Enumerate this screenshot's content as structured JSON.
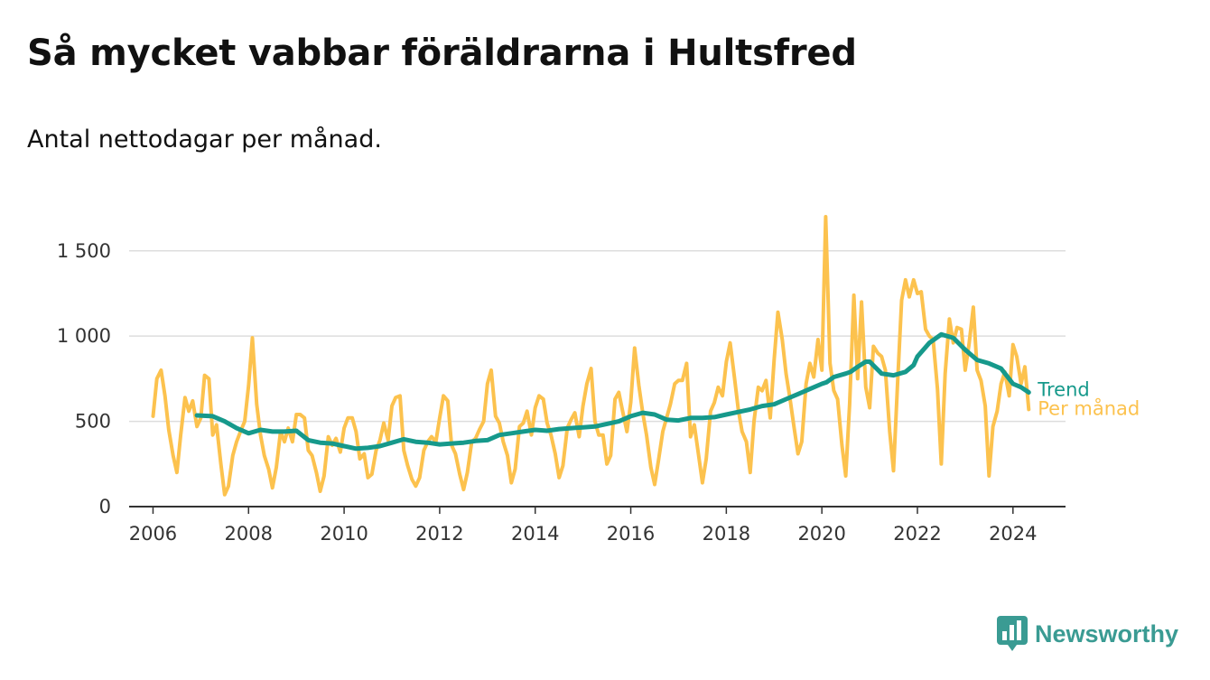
{
  "header": {
    "title": "Så mycket vabbar föräldrarna i Hultsfred",
    "subtitle": "Antal nettodagar per månad."
  },
  "brand": {
    "name": "Newsworthy",
    "icon": "newsworthy-logo-icon"
  },
  "colors": {
    "monthly": "#fcc24e",
    "trend": "#16998b",
    "grid": "#dddddd",
    "axis": "#333333",
    "brand": "#3a9b93"
  },
  "chart_data": {
    "type": "line",
    "title": "Så mycket vabbar föräldrarna i Hultsfred",
    "subtitle": "Antal nettodagar per månad.",
    "xlabel": "",
    "ylabel": "",
    "xlim": [
      2005.5,
      2025.1
    ],
    "ylim": [
      0,
      1700
    ],
    "y_ticks": [
      0,
      500,
      1000,
      1500
    ],
    "y_tick_labels": [
      "0",
      "500",
      "1 000",
      "1 500"
    ],
    "x_ticks": [
      2006,
      2008,
      2010,
      2012,
      2014,
      2016,
      2018,
      2020,
      2022,
      2024
    ],
    "x_tick_labels": [
      "2006",
      "2008",
      "2010",
      "2012",
      "2014",
      "2016",
      "2018",
      "2020",
      "2022",
      "2024"
    ],
    "grid": "horizontal",
    "legend": "inline labels at line ends (right)",
    "series": [
      {
        "name": "Per månad",
        "color": "#fcc24e",
        "x": [
          2006.0,
          2006.08,
          2006.17,
          2006.25,
          2006.33,
          2006.42,
          2006.5,
          2006.58,
          2006.67,
          2006.75,
          2006.83,
          2006.92,
          2007.0,
          2007.08,
          2007.17,
          2007.25,
          2007.33,
          2007.42,
          2007.5,
          2007.58,
          2007.67,
          2007.75,
          2007.83,
          2007.92,
          2008.0,
          2008.08,
          2008.17,
          2008.25,
          2008.33,
          2008.42,
          2008.5,
          2008.58,
          2008.67,
          2008.75,
          2008.83,
          2008.92,
          2009.0,
          2009.08,
          2009.17,
          2009.25,
          2009.33,
          2009.42,
          2009.5,
          2009.58,
          2009.67,
          2009.75,
          2009.83,
          2009.92,
          2010.0,
          2010.08,
          2010.17,
          2010.25,
          2010.33,
          2010.42,
          2010.5,
          2010.58,
          2010.67,
          2010.75,
          2010.83,
          2010.92,
          2011.0,
          2011.08,
          2011.17,
          2011.25,
          2011.33,
          2011.42,
          2011.5,
          2011.58,
          2011.67,
          2011.75,
          2011.83,
          2011.92,
          2012.0,
          2012.08,
          2012.17,
          2012.25,
          2012.33,
          2012.42,
          2012.5,
          2012.58,
          2012.67,
          2012.75,
          2012.83,
          2012.92,
          2013.0,
          2013.08,
          2013.17,
          2013.25,
          2013.33,
          2013.42,
          2013.5,
          2013.58,
          2013.67,
          2013.75,
          2013.83,
          2013.92,
          2014.0,
          2014.08,
          2014.17,
          2014.25,
          2014.33,
          2014.42,
          2014.5,
          2014.58,
          2014.67,
          2014.75,
          2014.83,
          2014.92,
          2015.0,
          2015.08,
          2015.17,
          2015.25,
          2015.33,
          2015.42,
          2015.5,
          2015.58,
          2015.67,
          2015.75,
          2015.83,
          2015.92,
          2016.0,
          2016.08,
          2016.17,
          2016.25,
          2016.33,
          2016.42,
          2016.5,
          2016.58,
          2016.67,
          2016.75,
          2016.83,
          2016.92,
          2017.0,
          2017.08,
          2017.17,
          2017.25,
          2017.33,
          2017.42,
          2017.5,
          2017.58,
          2017.67,
          2017.75,
          2017.83,
          2017.92,
          2018.0,
          2018.08,
          2018.17,
          2018.25,
          2018.33,
          2018.42,
          2018.5,
          2018.58,
          2018.67,
          2018.75,
          2018.83,
          2018.92,
          2019.0,
          2019.08,
          2019.17,
          2019.25,
          2019.33,
          2019.42,
          2019.5,
          2019.58,
          2019.67,
          2019.75,
          2019.83,
          2019.92,
          2020.0,
          2020.08,
          2020.17,
          2020.25,
          2020.33,
          2020.42,
          2020.5,
          2020.58,
          2020.67,
          2020.75,
          2020.83,
          2020.92,
          2021.0,
          2021.08,
          2021.17,
          2021.25,
          2021.33,
          2021.42,
          2021.5,
          2021.58,
          2021.67,
          2021.75,
          2021.83,
          2021.92,
          2022.0,
          2022.08,
          2022.17,
          2022.25,
          2022.33,
          2022.42,
          2022.5,
          2022.58,
          2022.67,
          2022.75,
          2022.83,
          2022.92,
          2023.0,
          2023.08,
          2023.17,
          2023.25,
          2023.33,
          2023.42,
          2023.5,
          2023.58,
          2023.67,
          2023.75,
          2023.83,
          2023.92,
          2024.0,
          2024.08,
          2024.17,
          2024.25,
          2024.33
        ],
        "values": [
          530,
          750,
          800,
          650,
          450,
          300,
          200,
          420,
          640,
          560,
          620,
          470,
          520,
          770,
          750,
          420,
          480,
          250,
          70,
          120,
          300,
          380,
          440,
          500,
          710,
          990,
          600,
          420,
          300,
          220,
          110,
          230,
          440,
          380,
          460,
          380,
          540,
          540,
          520,
          330,
          300,
          200,
          90,
          180,
          410,
          360,
          400,
          320,
          460,
          520,
          520,
          440,
          280,
          310,
          170,
          190,
          330,
          390,
          490,
          390,
          590,
          640,
          650,
          330,
          240,
          160,
          120,
          170,
          330,
          380,
          410,
          380,
          520,
          650,
          620,
          360,
          310,
          190,
          100,
          200,
          380,
          400,
          450,
          500,
          720,
          800,
          530,
          490,
          380,
          300,
          140,
          220,
          470,
          490,
          560,
          420,
          580,
          650,
          630,
          490,
          420,
          310,
          170,
          240,
          460,
          510,
          550,
          410,
          590,
          720,
          810,
          500,
          420,
          420,
          250,
          300,
          630,
          670,
          560,
          440,
          610,
          930,
          710,
          550,
          420,
          230,
          130,
          270,
          440,
          520,
          600,
          720,
          740,
          740,
          840,
          410,
          480,
          300,
          140,
          280,
          560,
          610,
          700,
          650,
          850,
          960,
          760,
          570,
          440,
          380,
          200,
          500,
          700,
          680,
          740,
          520,
          860,
          1140,
          980,
          780,
          640,
          460,
          310,
          380,
          720,
          840,
          760,
          980,
          800,
          1700,
          840,
          680,
          630,
          360,
          180,
          600,
          1240,
          750,
          1200,
          700,
          580,
          940,
          900,
          880,
          800,
          440,
          210,
          700,
          1210,
          1330,
          1230,
          1330,
          1250,
          1260,
          1040,
          1000,
          980,
          690,
          250,
          780,
          1100,
          960,
          1050,
          1040,
          800,
          950,
          1170,
          800,
          740,
          590,
          180,
          470,
          560,
          720,
          790,
          650,
          950,
          880,
          720,
          820,
          570
        ]
      },
      {
        "name": "Trend",
        "color": "#16998b",
        "x": [
          2006.92,
          2007.25,
          2007.5,
          2007.75,
          2008.0,
          2008.25,
          2008.5,
          2008.75,
          2009.0,
          2009.25,
          2009.5,
          2009.75,
          2010.0,
          2010.25,
          2010.5,
          2010.75,
          2011.0,
          2011.25,
          2011.5,
          2011.75,
          2012.0,
          2012.25,
          2012.5,
          2012.75,
          2013.0,
          2013.25,
          2013.5,
          2013.75,
          2014.0,
          2014.25,
          2014.5,
          2014.75,
          2015.0,
          2015.25,
          2015.5,
          2015.75,
          2016.0,
          2016.25,
          2016.5,
          2016.75,
          2017.0,
          2017.25,
          2017.5,
          2017.75,
          2018.0,
          2018.25,
          2018.5,
          2018.75,
          2019.0,
          2019.25,
          2019.5,
          2019.75,
          2020.0,
          2020.1,
          2020.25,
          2020.5,
          2020.6,
          2020.75,
          2020.92,
          2021.0,
          2021.25,
          2021.5,
          2021.75,
          2021.92,
          2022.0,
          2022.25,
          2022.5,
          2022.75,
          2023.0,
          2023.25,
          2023.5,
          2023.75,
          2024.0,
          2024.17,
          2024.33
        ],
        "values": [
          535,
          530,
          500,
          460,
          430,
          450,
          440,
          440,
          445,
          390,
          375,
          370,
          355,
          340,
          345,
          355,
          375,
          395,
          380,
          375,
          365,
          370,
          375,
          385,
          390,
          420,
          430,
          440,
          450,
          445,
          455,
          460,
          465,
          470,
          485,
          500,
          530,
          550,
          540,
          510,
          505,
          520,
          520,
          525,
          540,
          555,
          570,
          590,
          600,
          630,
          660,
          690,
          720,
          730,
          760,
          780,
          790,
          820,
          850,
          850,
          780,
          770,
          790,
          830,
          880,
          960,
          1010,
          990,
          920,
          860,
          840,
          810,
          720,
          700,
          670
        ]
      }
    ]
  }
}
